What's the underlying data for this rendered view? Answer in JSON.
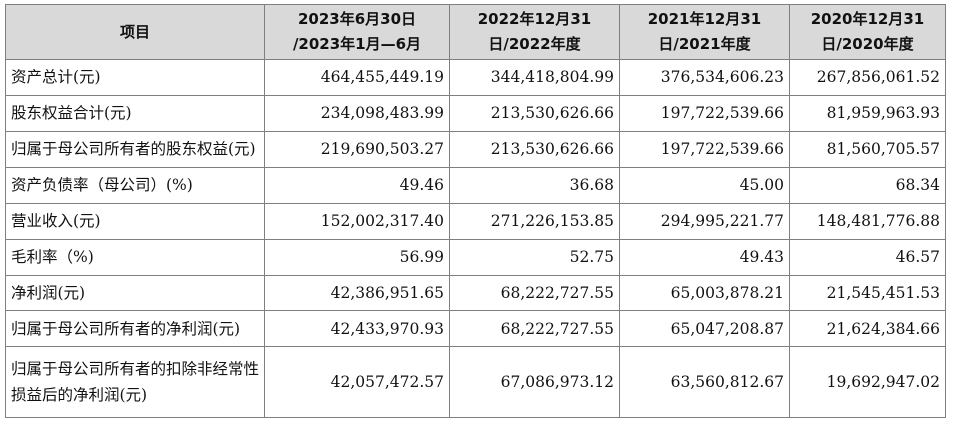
{
  "headers": [
    "项目",
    "2023年6月30日\n/2023年1月—6月",
    "2022年12月31\n日/2022年度",
    "2021年12月31\n日/2021年度",
    "2020年12月31\n日/2020年度"
  ],
  "rows": [
    {
      "label": "资产总计(元)",
      "values": [
        "464,455,449.19",
        "344,418,804.99",
        "376,534,606.23",
        "267,856,061.52"
      ]
    },
    {
      "label": "股东权益合计(元)",
      "values": [
        "234,098,483.99",
        "213,530,626.66",
        "197,722,539.66",
        "81,959,963.93"
      ]
    },
    {
      "label": "归属于母公司所有者的股东权益(元)",
      "values": [
        "219,690,503.27",
        "213,530,626.66",
        "197,722,539.66",
        "81,560,705.57"
      ]
    },
    {
      "label": "资产负债率（母公司）(%)",
      "values": [
        "49.46",
        "36.68",
        "45.00",
        "68.34"
      ]
    },
    {
      "label": "营业收入(元)",
      "values": [
        "152,002,317.40",
        "271,226,153.85",
        "294,995,221.77",
        "148,481,776.88"
      ]
    },
    {
      "label": "毛利率（%)",
      "values": [
        "56.99",
        "52.75",
        "49.43",
        "46.57"
      ]
    },
    {
      "label": "净利润(元)",
      "values": [
        "42,386,951.65",
        "68,222,727.55",
        "65,003,878.21",
        "21,545,451.53"
      ]
    },
    {
      "label": "归属于母公司所有者的净利润(元)",
      "values": [
        "42,433,970.93",
        "68,222,727.55",
        "65,047,208.87",
        "21,624,384.66"
      ]
    },
    {
      "label": "归属于母公司所有者的扣除非经常性损益后的净利润(元)",
      "values": [
        "42,057,472.57",
        "67,086,973.12",
        "63,560,812.67",
        "19,692,947.02"
      ]
    }
  ]
}
